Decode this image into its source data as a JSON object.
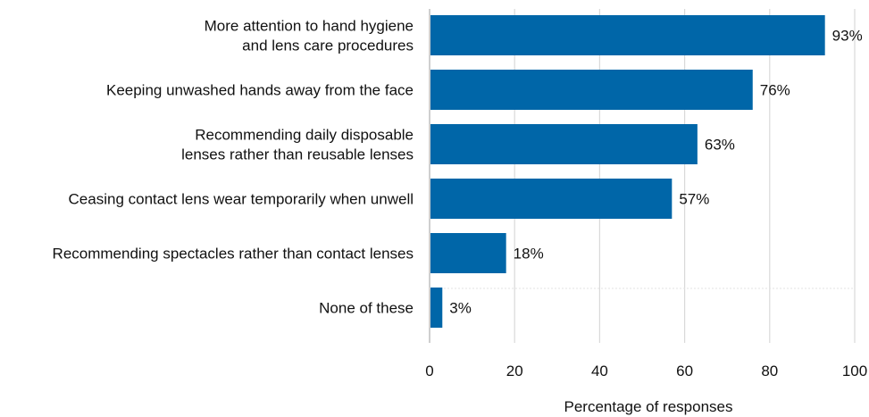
{
  "chart_data": {
    "type": "bar",
    "orientation": "horizontal",
    "categories": [
      [
        "More attention to hand hygiene",
        "and lens care procedures"
      ],
      [
        "Keeping unwashed hands away from the face"
      ],
      [
        "Recommending daily disposable",
        "lenses rather than reusable lenses"
      ],
      [
        "Ceasing contact lens wear temporarily when unwell"
      ],
      [
        "Recommending spectacles rather than contact lenses"
      ],
      [
        "None of these"
      ]
    ],
    "values": [
      93,
      76,
      63,
      57,
      18,
      3
    ],
    "value_labels": [
      "93%",
      "76%",
      "63%",
      "57%",
      "18%",
      "3%"
    ],
    "xlabel": "Percentage of responses",
    "ylabel": "",
    "xlim": [
      0,
      100
    ],
    "xticks": [
      0,
      20,
      40,
      60,
      80,
      100
    ],
    "xtick_labels": [
      "0",
      "20",
      "40",
      "60",
      "80",
      "100"
    ],
    "grid": "vertical",
    "legend": "none",
    "colors": {
      "bar": "#0066a8",
      "grid": "#d9d9d9",
      "axis": "#bfbfbf"
    }
  }
}
